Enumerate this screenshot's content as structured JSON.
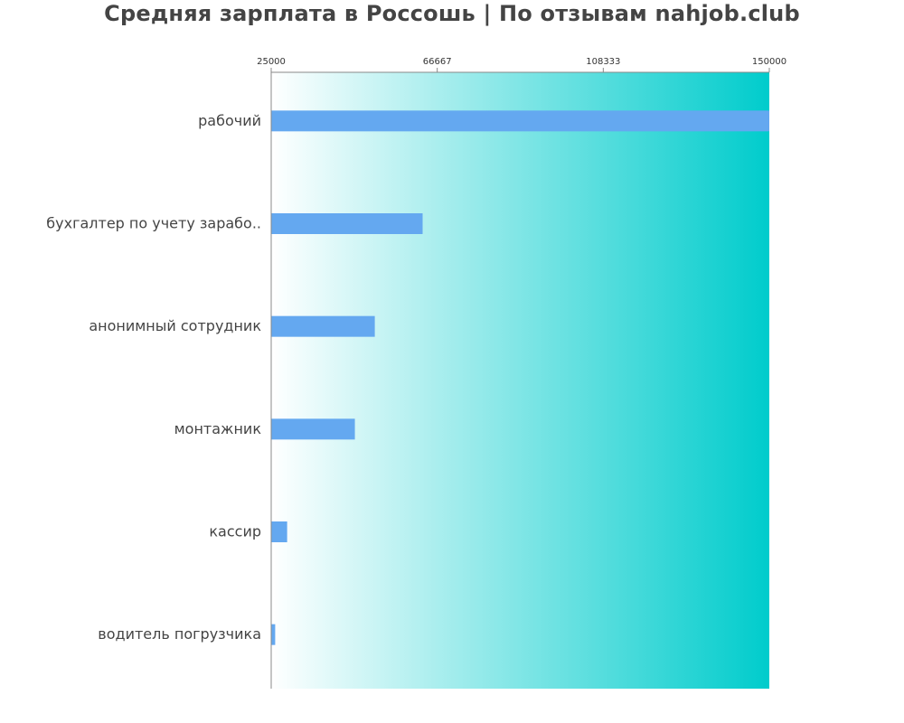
{
  "title": "Средняя зарплата в Россошь | По отзывам nahjob.club",
  "colors": {
    "bar": "#64a8f0",
    "gradient_start": "#ffffff",
    "gradient_end": "#00cccc",
    "axis": "#888888",
    "text": "#444444"
  },
  "chart_data": {
    "type": "bar",
    "orientation": "horizontal",
    "title": "Средняя зарплата в Россошь | По отзывам nahjob.club",
    "xlabel": "",
    "ylabel": "",
    "xlim": [
      25000,
      150000
    ],
    "xticks": [
      "25000",
      "66667",
      "108333",
      "150000"
    ],
    "xtick_values": [
      25000,
      66667,
      108333,
      150000
    ],
    "tick_position": "top",
    "grid": false,
    "categories": [
      "рабочий",
      "бухгалтер по учету зарабо..",
      "анонимный сотрудник",
      "монтажник",
      "кассир",
      "водитель погрузчика"
    ],
    "values": [
      150000,
      63000,
      51000,
      46000,
      29000,
      26000
    ]
  }
}
